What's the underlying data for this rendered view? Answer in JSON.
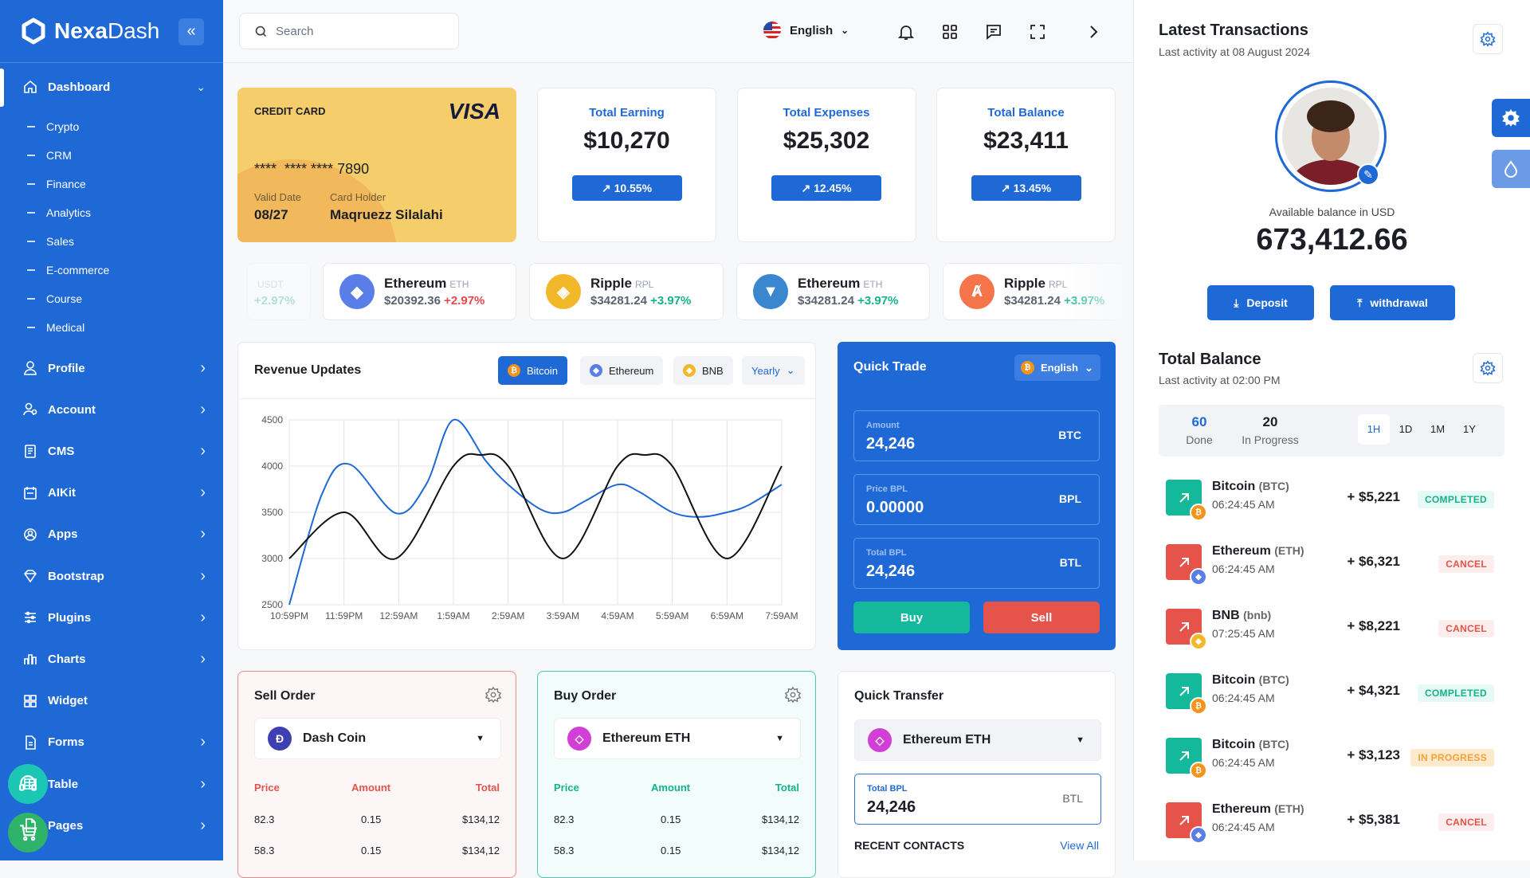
{
  "brand": {
    "name_bold": "Nexa",
    "name_light": "Dash"
  },
  "sidebar": {
    "dashboard": "Dashboard",
    "sub": [
      "Crypto",
      "CRM",
      "Finance",
      "Analytics",
      "Sales",
      "E-commerce",
      "Course",
      "Medical"
    ],
    "items": [
      "Profile",
      "Account",
      "CMS",
      "AIKit",
      "Apps",
      "Bootstrap",
      "Plugins",
      "Charts",
      "Widget",
      "Forms",
      "Table",
      "Pages"
    ]
  },
  "topbar": {
    "search_placeholder": "Search",
    "language": "English"
  },
  "credit_card": {
    "label": "CREDIT CARD",
    "brand": "VISA",
    "number": "****  **** **** 7890",
    "valid_label": "Valid Date",
    "valid": "08/27",
    "holder_label": "Card Holder",
    "holder": "Maqruezz Silalahi"
  },
  "stats": [
    {
      "title": "Total Earning",
      "value": "$10,270",
      "change": "10.55%"
    },
    {
      "title": "Total Expenses",
      "value": "$25,302",
      "change": "12.45%"
    },
    {
      "title": "Total Balance",
      "value": "$23,411",
      "change": "13.45%"
    }
  ],
  "ticker": [
    {
      "name": "",
      "sym": "USDT",
      "price": "",
      "change": "+2.97%",
      "dir": "up",
      "color": "#26a17b"
    },
    {
      "name": "Ethereum",
      "sym": "ETH",
      "price": "$20392.36",
      "change": "+2.97%",
      "dir": "dn",
      "color": "#5a7ee8"
    },
    {
      "name": "Ripple",
      "sym": "RPL",
      "price": "$34281.24",
      "change": "+3.97%",
      "dir": "up",
      "color": "#f3b82a"
    },
    {
      "name": "Ethereum",
      "sym": "ETH",
      "price": "$34281.24",
      "change": "+3.97%",
      "dir": "up",
      "color": "#3a86cf"
    },
    {
      "name": "Ripple",
      "sym": "RPL",
      "price": "$34281.24",
      "change": "+3.97%",
      "dir": "up",
      "color": "#f5744a"
    }
  ],
  "revenue": {
    "title": "Revenue Updates",
    "tabs": [
      "Bitcoin",
      "Ethereum",
      "BNB"
    ],
    "period": "Yearly"
  },
  "chart_data": {
    "type": "line",
    "title": "Revenue Updates",
    "categories": [
      "10:59PM",
      "11:59PM",
      "12:59AM",
      "1:59AM",
      "2:59AM",
      "3:59AM",
      "4:59AM",
      "5:59AM",
      "6:59AM",
      "7:59AM"
    ],
    "ylim": [
      2500,
      4500
    ],
    "yticks": [
      4500,
      4000,
      3500,
      3000,
      2500
    ],
    "grid": true,
    "series": [
      {
        "name": "Bitcoin",
        "color": "#1f69d6",
        "points": [
          [
            0,
            2500
          ],
          [
            0.6,
            3700
          ],
          [
            1.1,
            4020
          ],
          [
            1.95,
            3490
          ],
          [
            2.5,
            3800
          ],
          [
            3.0,
            4500
          ],
          [
            3.6,
            4050
          ],
          [
            4.0,
            3800
          ],
          [
            4.6,
            3530
          ],
          [
            5.0,
            3500
          ],
          [
            5.4,
            3620
          ],
          [
            6.0,
            3800
          ],
          [
            6.4,
            3720
          ],
          [
            7.0,
            3500
          ],
          [
            7.5,
            3450
          ],
          [
            8.0,
            3500
          ],
          [
            8.4,
            3580
          ],
          [
            9,
            3800
          ]
        ]
      },
      {
        "name": "Ethereum",
        "color": "#111111",
        "points": [
          [
            0,
            3000
          ],
          [
            1,
            3500
          ],
          [
            1.95,
            3000
          ],
          [
            3,
            4000
          ],
          [
            3.5,
            4120
          ],
          [
            4,
            4000
          ],
          [
            5,
            3000
          ],
          [
            6,
            4000
          ],
          [
            6.5,
            4120
          ],
          [
            7,
            4000
          ],
          [
            8,
            3000
          ],
          [
            9,
            4000
          ]
        ]
      }
    ]
  },
  "quick_trade": {
    "title": "Quick Trade",
    "lang": "English",
    "fields": [
      {
        "label": "Amount",
        "value": "24,246",
        "unit": "BTC"
      },
      {
        "label": "Price BPL",
        "value": "0.00000",
        "unit": "BPL"
      },
      {
        "label": "Total BPL",
        "value": "24,246",
        "unit": "BTL"
      }
    ],
    "buy": "Buy",
    "sell": "Sell"
  },
  "sell_order": {
    "title": "Sell Order",
    "coin": "Dash Coin",
    "headers": [
      "Price",
      "Amount",
      "Total"
    ],
    "rows": [
      [
        "82.3",
        "0.15",
        "$134,12"
      ],
      [
        "58.3",
        "0.15",
        "$134,12"
      ]
    ]
  },
  "buy_order": {
    "title": "Buy Order",
    "coin": "Ethereum ETH",
    "headers": [
      "Price",
      "Amount",
      "Total"
    ],
    "rows": [
      [
        "82.3",
        "0.15",
        "$134,12"
      ],
      [
        "58.3",
        "0.15",
        "$134,12"
      ]
    ]
  },
  "quick_transfer": {
    "title": "Quick Transfer",
    "coin": "Ethereum ETH",
    "field_label": "Total BPL",
    "field_value": "24,246",
    "unit": "BTL",
    "recent": "RECENT CONTACTS",
    "view_all": "View All"
  },
  "latest": {
    "title": "Latest Transactions",
    "subtitle": "Last activity at 08 August 2024",
    "balance_label": "Available balance in USD",
    "balance": "673,412.66",
    "deposit": "Deposit",
    "withdraw": "withdrawal"
  },
  "total_balance": {
    "title": "Total Balance",
    "subtitle": "Last activity at 02:00 PM",
    "done": "60",
    "done_label": "Done",
    "progress": "20",
    "progress_label": "In Progress",
    "periods": [
      "1H",
      "1D",
      "1M",
      "1Y"
    ]
  },
  "transactions": [
    {
      "name": "Bitcoin",
      "sym": "(BTC)",
      "time": "06:24:45 AM",
      "amount": "+ $5,221",
      "status": "COMPLETED",
      "type": "up",
      "coin": "#f7931a"
    },
    {
      "name": "Ethereum",
      "sym": "(ETH)",
      "time": "06:24:45 AM",
      "amount": "+ $6,321",
      "status": "CANCEL",
      "type": "dn",
      "coin": "#5a7ee8"
    },
    {
      "name": "BNB",
      "sym": "(bnb)",
      "time": "07:25:45 AM",
      "amount": "+ $8,221",
      "status": "CANCEL",
      "type": "dn",
      "coin": "#f3b82a"
    },
    {
      "name": "Bitcoin",
      "sym": "(BTC)",
      "time": "06:24:45 AM",
      "amount": "+ $4,321",
      "status": "COMPLETED",
      "type": "up",
      "coin": "#f7931a"
    },
    {
      "name": "Bitcoin",
      "sym": "(BTC)",
      "time": "06:24:45 AM",
      "amount": "+ $3,123",
      "status": "IN PROGRESS",
      "type": "up",
      "coin": "#f7931a"
    },
    {
      "name": "Ethereum",
      "sym": "(ETH)",
      "time": "06:24:45 AM",
      "amount": "+ $5,381",
      "status": "CANCEL",
      "type": "dn",
      "coin": "#5a7ee8"
    }
  ],
  "colors": {
    "primary": "#1f69d6",
    "success": "#14b38a",
    "danger": "#e5534b",
    "warning": "#f3a33a"
  }
}
